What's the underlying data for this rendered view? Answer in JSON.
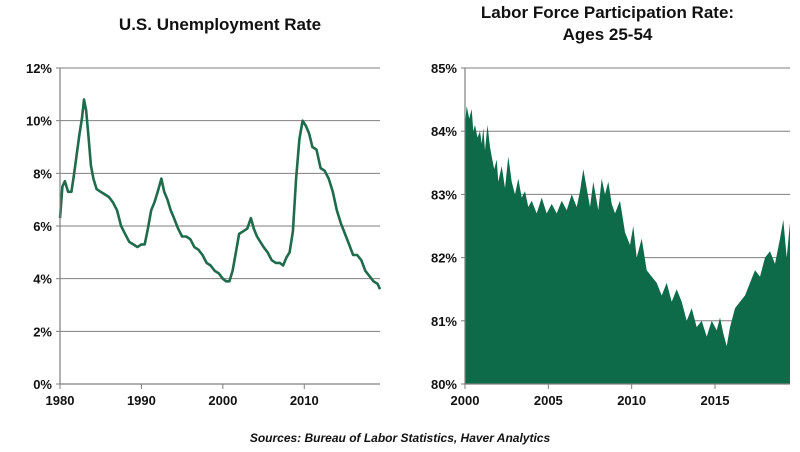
{
  "colors": {
    "series": "#1f6b4c",
    "grid": "#7f7f7f",
    "fill": "#0e6b49"
  },
  "source": "Sources: Bureau of Labor Statistics, Haver Analytics",
  "chart_data": [
    {
      "type": "line",
      "title": "U.S. Unemployment Rate",
      "xlabel": "",
      "ylabel": "",
      "xlim": [
        1980,
        2019.3
      ],
      "ylim": [
        0,
        12
      ],
      "x_ticks": [
        "1980",
        "1990",
        "2000",
        "2010"
      ],
      "y_ticks": [
        "0%",
        "2%",
        "4%",
        "6%",
        "8%",
        "10%",
        "12%"
      ],
      "grid": true,
      "series": [
        {
          "name": "Unemployment Rate",
          "x": [
            1980.0,
            1980.3,
            1980.6,
            1981.0,
            1981.4,
            1981.7,
            1982.0,
            1982.4,
            1982.7,
            1982.95,
            1983.2,
            1983.5,
            1983.8,
            1984.1,
            1984.5,
            1985.0,
            1985.5,
            1986.0,
            1986.5,
            1987.0,
            1987.5,
            1988.0,
            1988.5,
            1989.0,
            1989.5,
            1990.0,
            1990.4,
            1990.8,
            1991.2,
            1991.6,
            1992.0,
            1992.45,
            1992.8,
            1993.2,
            1993.6,
            1994.0,
            1994.5,
            1995.0,
            1995.5,
            1996.0,
            1996.5,
            1997.0,
            1997.5,
            1998.0,
            1998.5,
            1999.0,
            1999.5,
            2000.0,
            2000.4,
            2000.8,
            2001.2,
            2001.6,
            2002.0,
            2002.5,
            2003.0,
            2003.45,
            2003.8,
            2004.2,
            2004.6,
            2005.0,
            2005.5,
            2006.0,
            2006.5,
            2007.0,
            2007.4,
            2007.8,
            2008.2,
            2008.6,
            2009.0,
            2009.4,
            2009.8,
            2010.2,
            2010.6,
            2011.0,
            2011.5,
            2012.0,
            2012.5,
            2013.0,
            2013.5,
            2014.0,
            2014.5,
            2015.0,
            2015.5,
            2016.0,
            2016.5,
            2017.0,
            2017.5,
            2018.0,
            2018.5,
            2019.0,
            2019.3
          ],
          "values": [
            6.3,
            7.5,
            7.7,
            7.3,
            7.3,
            7.9,
            8.6,
            9.5,
            10.1,
            10.8,
            10.4,
            9.4,
            8.3,
            7.8,
            7.4,
            7.3,
            7.2,
            7.1,
            6.9,
            6.6,
            6.0,
            5.7,
            5.4,
            5.3,
            5.2,
            5.3,
            5.3,
            5.9,
            6.6,
            6.9,
            7.3,
            7.8,
            7.3,
            7.0,
            6.6,
            6.3,
            5.9,
            5.6,
            5.6,
            5.5,
            5.2,
            5.1,
            4.9,
            4.6,
            4.5,
            4.3,
            4.2,
            4.0,
            3.9,
            3.9,
            4.3,
            5.0,
            5.7,
            5.8,
            5.9,
            6.3,
            5.9,
            5.6,
            5.4,
            5.2,
            5.0,
            4.7,
            4.6,
            4.6,
            4.5,
            4.8,
            5.0,
            5.8,
            7.8,
            9.3,
            10.0,
            9.8,
            9.5,
            9.0,
            8.9,
            8.2,
            8.1,
            7.8,
            7.3,
            6.6,
            6.1,
            5.7,
            5.3,
            4.9,
            4.9,
            4.7,
            4.3,
            4.1,
            3.9,
            3.8,
            3.6
          ]
        }
      ]
    },
    {
      "type": "area",
      "title": "Labor Force Participation Rate:\nAges 25-54",
      "xlabel": "",
      "ylabel": "",
      "xlim": [
        2000,
        2019.5
      ],
      "ylim": [
        80,
        85
      ],
      "x_ticks": [
        "2000",
        "2005",
        "2010",
        "2015"
      ],
      "y_ticks": [
        "80%",
        "81%",
        "82%",
        "83%",
        "84%",
        "85%"
      ],
      "grid": true,
      "series": [
        {
          "name": "Participation Rate, Ages 25-54",
          "x": [
            2000.0,
            2000.1,
            2000.25,
            2000.4,
            2000.5,
            2000.6,
            2000.75,
            2000.9,
            2001.0,
            2001.1,
            2001.2,
            2001.35,
            2001.5,
            2001.6,
            2001.75,
            2001.9,
            2002.0,
            2002.2,
            2002.4,
            2002.6,
            2002.8,
            2003.0,
            2003.2,
            2003.4,
            2003.6,
            2003.8,
            2004.0,
            2004.3,
            2004.6,
            2004.9,
            2005.2,
            2005.5,
            2005.8,
            2006.1,
            2006.4,
            2006.7,
            2006.9,
            2007.1,
            2007.3,
            2007.5,
            2007.7,
            2008.0,
            2008.2,
            2008.4,
            2008.6,
            2008.8,
            2009.0,
            2009.3,
            2009.6,
            2009.9,
            2010.1,
            2010.3,
            2010.6,
            2010.9,
            2011.2,
            2011.5,
            2011.8,
            2012.1,
            2012.4,
            2012.7,
            2013.0,
            2013.3,
            2013.6,
            2013.9,
            2014.2,
            2014.5,
            2014.8,
            2015.1,
            2015.3,
            2015.5,
            2015.7,
            2015.9,
            2016.2,
            2016.5,
            2016.8,
            2017.1,
            2017.4,
            2017.7,
            2018.0,
            2018.3,
            2018.6,
            2018.9,
            2019.1,
            2019.3,
            2019.5
          ],
          "values": [
            84.1,
            84.4,
            84.2,
            84.35,
            84.0,
            84.1,
            83.9,
            84.0,
            83.8,
            84.05,
            83.7,
            84.1,
            83.75,
            83.6,
            83.4,
            83.55,
            83.2,
            83.45,
            83.1,
            83.6,
            83.2,
            83.0,
            83.25,
            82.95,
            83.05,
            82.8,
            82.9,
            82.7,
            82.95,
            82.7,
            82.85,
            82.7,
            82.9,
            82.75,
            83.0,
            82.8,
            83.05,
            83.4,
            83.1,
            82.8,
            83.2,
            82.75,
            83.25,
            83.0,
            83.2,
            82.85,
            82.7,
            82.9,
            82.4,
            82.2,
            82.5,
            82.0,
            82.3,
            81.8,
            81.7,
            81.6,
            81.4,
            81.6,
            81.3,
            81.5,
            81.3,
            81.0,
            81.2,
            80.9,
            81.0,
            80.75,
            81.0,
            80.85,
            81.05,
            80.8,
            80.6,
            80.9,
            81.2,
            81.3,
            81.4,
            81.6,
            81.8,
            81.7,
            82.0,
            82.1,
            81.9,
            82.3,
            82.6,
            82.0,
            82.55
          ]
        }
      ]
    }
  ]
}
